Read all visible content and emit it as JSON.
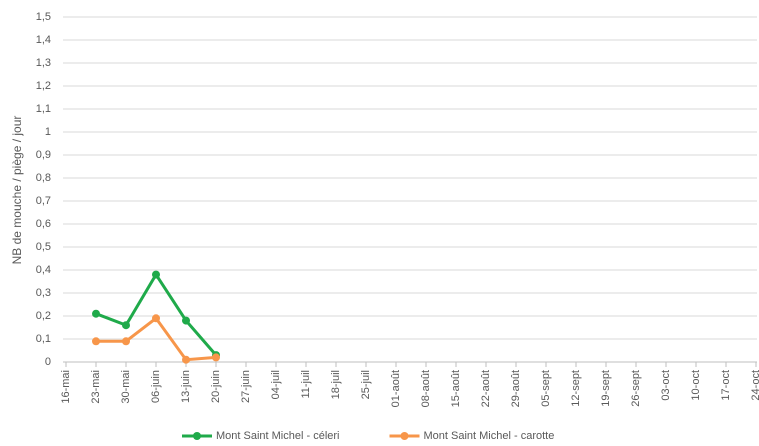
{
  "chart_data": {
    "type": "line",
    "y_label": "NB de mouche / piège / jour",
    "categories": [
      "16-mai",
      "23-mai",
      "30-mai",
      "06-juin",
      "13-juin",
      "20-juin",
      "27-juin",
      "04-juil",
      "11-juil",
      "18-juil",
      "25-juil",
      "01-août",
      "08-août",
      "15-août",
      "22-août",
      "29-août",
      "05-sept",
      "12-sept",
      "19-sept",
      "26-sept",
      "03-oct",
      "10-oct",
      "17-oct",
      "24-oct"
    ],
    "series": [
      {
        "name": "Mont Saint Michel - céleri",
        "color": "#1faa4a",
        "values": [
          null,
          0.21,
          0.16,
          0.38,
          0.18,
          0.03,
          null,
          null,
          null,
          null,
          null,
          null,
          null,
          null,
          null,
          null,
          null,
          null,
          null,
          null,
          null,
          null,
          null,
          null
        ]
      },
      {
        "name": "Mont Saint Michel - carotte",
        "color": "#f7964a",
        "values": [
          null,
          0.09,
          0.09,
          0.19,
          0.01,
          0.02,
          null,
          null,
          null,
          null,
          null,
          null,
          null,
          null,
          null,
          null,
          null,
          null,
          null,
          null,
          null,
          null,
          null,
          null
        ]
      }
    ],
    "ylim": [
      0,
      1.5
    ],
    "yticks": [
      0,
      {
        "value": 0.1,
        "label": "0,1"
      },
      {
        "value": 0.2,
        "label": "0,2"
      },
      {
        "value": 0.3,
        "label": "0,3"
      },
      {
        "value": 0.4,
        "label": "0,4"
      },
      {
        "value": 0.5,
        "label": "0,5"
      },
      {
        "value": 0.6,
        "label": "0,6"
      },
      {
        "value": 0.7,
        "label": "0,7"
      },
      {
        "value": 0.8,
        "label": "0,8"
      },
      {
        "value": 0.9,
        "label": "0,9"
      },
      1,
      {
        "value": 1.1,
        "label": "1,1"
      },
      {
        "value": 1.2,
        "label": "1,2"
      },
      {
        "value": 1.3,
        "label": "1,3"
      },
      {
        "value": 1.4,
        "label": "1,4"
      },
      {
        "value": 1.5,
        "label": "1,5"
      }
    ],
    "grid": true,
    "legend": "bottom"
  }
}
